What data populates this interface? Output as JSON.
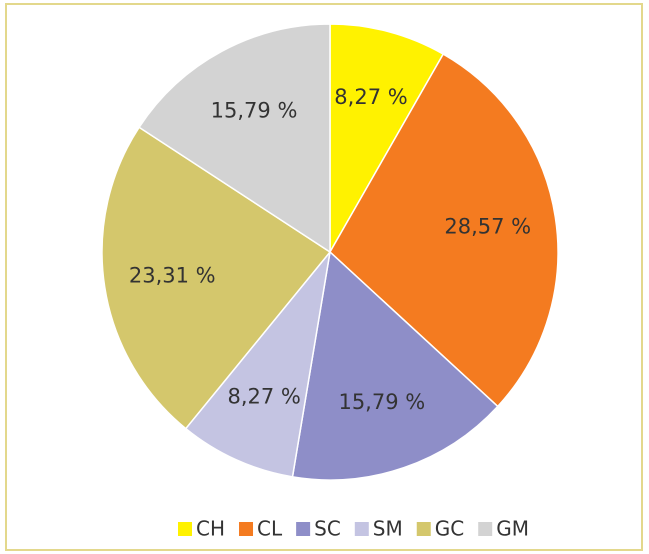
{
  "chart_data": {
    "type": "pie",
    "categories": [
      "CH",
      "CL",
      "SC",
      "SM",
      "GC",
      "GM"
    ],
    "values": [
      8.27,
      28.57,
      15.79,
      8.27,
      23.31,
      15.79
    ],
    "value_labels": [
      "8,27 %",
      "28,57 %",
      "15,79 %",
      "8,27 %",
      "23,31 %",
      "15,79 %"
    ],
    "colors": [
      "#fff200",
      "#f47b20",
      "#8e8ec8",
      "#c4c4e2",
      "#d4c76c",
      "#d3d3d3"
    ],
    "legend": "bottom"
  }
}
